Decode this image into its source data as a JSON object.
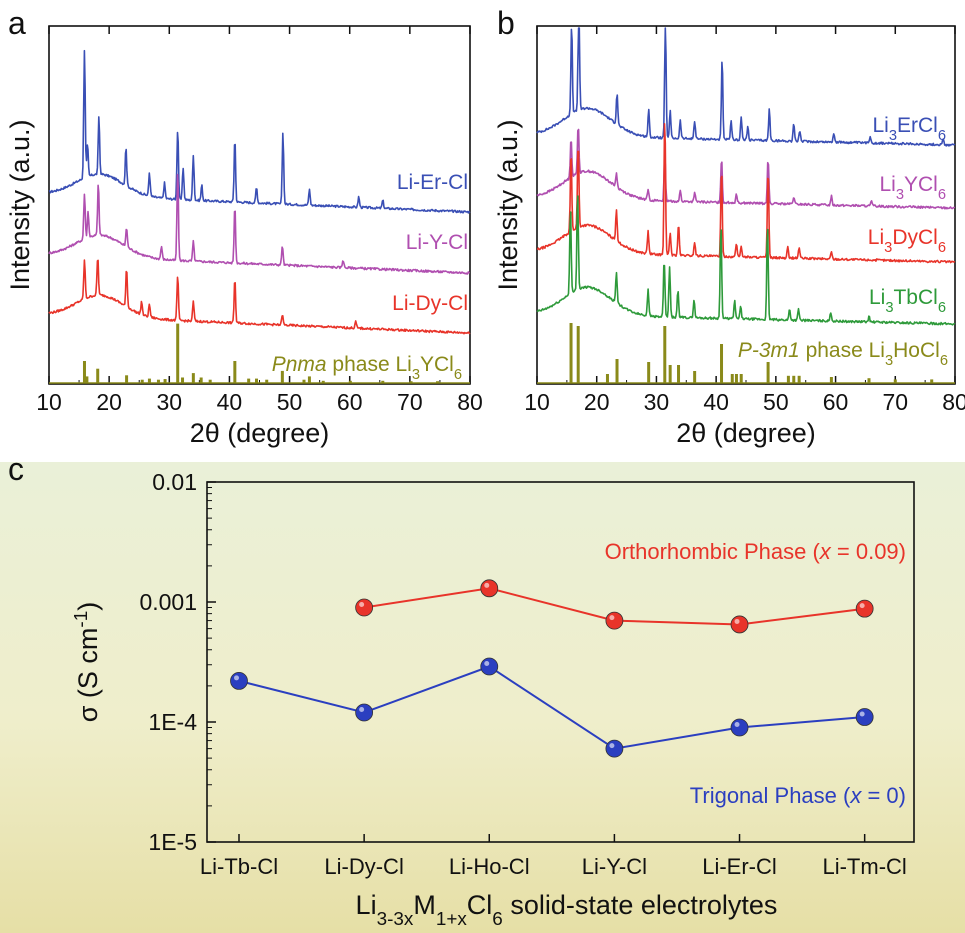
{
  "chart_data": [
    {
      "panel": "a",
      "type": "line",
      "xlabel": "2θ (degree)",
      "ylabel": "Intensity (a.u.)",
      "xlim": [
        10,
        80
      ],
      "xticks": [
        10,
        20,
        30,
        40,
        50,
        60,
        70,
        80
      ],
      "reference": {
        "label_parts": [
          {
            "t": "Pnma",
            "style": "italic"
          },
          {
            "t": " phase Li"
          },
          {
            "t": "3",
            "style": "sub"
          },
          {
            "t": "YCl"
          },
          {
            "t": "6",
            "style": "sub"
          }
        ],
        "color": "#8a8a1a",
        "peaks": [
          [
            15.9,
            1.0
          ],
          [
            16.3,
            0.3
          ],
          [
            18.1,
            0.65
          ],
          [
            22.9,
            0.35
          ],
          [
            25.5,
            0.15
          ],
          [
            26.7,
            0.2
          ],
          [
            28.2,
            0.15
          ],
          [
            29.3,
            0.18
          ],
          [
            31.4,
            2.7
          ],
          [
            32.2,
            0.25
          ],
          [
            34.0,
            0.45
          ],
          [
            35.3,
            0.25
          ],
          [
            36.8,
            0.15
          ],
          [
            40.9,
            1.0
          ],
          [
            43.2,
            0.2
          ],
          [
            44.5,
            0.2
          ],
          [
            46.2,
            0.15
          ],
          [
            48.8,
            0.55
          ],
          [
            52.4,
            0.15
          ],
          [
            53.3,
            0.3
          ],
          [
            55.6,
            0.1
          ],
          [
            60.1,
            0.1
          ],
          [
            65.5,
            0.1
          ],
          [
            70.2,
            0.08
          ],
          [
            74.6,
            0.08
          ]
        ]
      },
      "traces": [
        {
          "name": "Li-Er-Cl",
          "color": "#3a4fb5",
          "peaks": [
            [
              15.9,
              1.0
            ],
            [
              16.4,
              0.25
            ],
            [
              18.3,
              0.45
            ],
            [
              22.8,
              0.3
            ],
            [
              26.7,
              0.18
            ],
            [
              29.2,
              0.12
            ],
            [
              31.4,
              0.55
            ],
            [
              32.3,
              0.25
            ],
            [
              34.0,
              0.35
            ],
            [
              35.4,
              0.12
            ],
            [
              40.9,
              0.5
            ],
            [
              44.5,
              0.12
            ],
            [
              48.9,
              0.55
            ],
            [
              53.3,
              0.12
            ],
            [
              61.5,
              0.08
            ],
            [
              65.5,
              0.06
            ]
          ]
        },
        {
          "name": "Li-Y-Cl",
          "color": "#b04fb0",
          "peaks": [
            [
              15.9,
              0.35
            ],
            [
              16.5,
              0.2
            ],
            [
              18.2,
              0.4
            ],
            [
              22.9,
              0.15
            ],
            [
              28.7,
              0.1
            ],
            [
              31.4,
              0.7
            ],
            [
              34.0,
              0.15
            ],
            [
              40.9,
              0.45
            ],
            [
              48.8,
              0.15
            ],
            [
              58.9,
              0.06
            ]
          ]
        },
        {
          "name": "Li-Dy-Cl",
          "color": "#e8342a",
          "peaks": [
            [
              15.9,
              0.3
            ],
            [
              18.1,
              0.3
            ],
            [
              22.9,
              0.3
            ],
            [
              25.4,
              0.1
            ],
            [
              26.7,
              0.1
            ],
            [
              31.4,
              0.35
            ],
            [
              34.0,
              0.15
            ],
            [
              40.9,
              0.35
            ],
            [
              48.8,
              0.08
            ],
            [
              61.0,
              0.05
            ]
          ]
        }
      ]
    },
    {
      "panel": "b",
      "type": "line",
      "xlabel": "2θ (degree)",
      "ylabel": "Intensity (a.u.)",
      "xlim": [
        10,
        80
      ],
      "xticks": [
        10,
        20,
        30,
        40,
        50,
        60,
        70,
        80
      ],
      "reference": {
        "label_parts": [
          {
            "t": "P-3m1",
            "style": "italic"
          },
          {
            "t": " phase Li"
          },
          {
            "t": "3",
            "style": "sub"
          },
          {
            "t": "HoCl"
          },
          {
            "t": "6",
            "style": "sub"
          }
        ],
        "color": "#8a8a1a",
        "peaks": [
          [
            15.7,
            1.0
          ],
          [
            16.9,
            0.95
          ],
          [
            21.8,
            0.15
          ],
          [
            23.4,
            0.4
          ],
          [
            28.7,
            0.35
          ],
          [
            31.4,
            0.95
          ],
          [
            32.3,
            0.3
          ],
          [
            33.7,
            0.3
          ],
          [
            36.4,
            0.2
          ],
          [
            40.9,
            0.65
          ],
          [
            42.7,
            0.15
          ],
          [
            43.4,
            0.15
          ],
          [
            44.2,
            0.15
          ],
          [
            48.7,
            0.35
          ],
          [
            52.1,
            0.12
          ],
          [
            53.0,
            0.12
          ],
          [
            53.9,
            0.12
          ],
          [
            59.3,
            0.1
          ],
          [
            65.6,
            0.08
          ],
          [
            70.0,
            0.06
          ],
          [
            76.1,
            0.06
          ]
        ]
      },
      "traces": [
        {
          "name_parts": [
            {
              "t": "Li"
            },
            {
              "t": "3",
              "style": "sub"
            },
            {
              "t": "ErCl"
            },
            {
              "t": "6",
              "style": "sub"
            }
          ],
          "color": "#3a4fb5",
          "peaks": [
            [
              15.8,
              1.0
            ],
            [
              17.0,
              1.25
            ],
            [
              23.4,
              0.35
            ],
            [
              28.7,
              0.3
            ],
            [
              31.5,
              1.3
            ],
            [
              32.3,
              0.3
            ],
            [
              34.0,
              0.2
            ],
            [
              36.4,
              0.2
            ],
            [
              41.0,
              0.9
            ],
            [
              42.5,
              0.2
            ],
            [
              44.2,
              0.25
            ],
            [
              45.3,
              0.15
            ],
            [
              48.9,
              0.35
            ],
            [
              53.0,
              0.2
            ],
            [
              54.0,
              0.12
            ],
            [
              59.7,
              0.1
            ],
            [
              65.8,
              0.08
            ],
            [
              78.0,
              0.06
            ]
          ]
        },
        {
          "name_parts": [
            {
              "t": "Li"
            },
            {
              "t": "3",
              "style": "sub"
            },
            {
              "t": "YCl"
            },
            {
              "t": "6",
              "style": "sub"
            }
          ],
          "color": "#b04fb0",
          "peaks": [
            [
              15.7,
              0.45
            ],
            [
              16.9,
              0.55
            ],
            [
              23.3,
              0.15
            ],
            [
              28.6,
              0.12
            ],
            [
              31.4,
              0.5
            ],
            [
              34.0,
              0.12
            ],
            [
              36.4,
              0.1
            ],
            [
              40.9,
              0.5
            ],
            [
              43.4,
              0.1
            ],
            [
              48.7,
              0.5
            ],
            [
              53.0,
              0.08
            ],
            [
              59.3,
              0.1
            ],
            [
              66.0,
              0.05
            ]
          ]
        },
        {
          "name_parts": [
            {
              "t": "Li"
            },
            {
              "t": "3",
              "style": "sub"
            },
            {
              "t": "DyCl"
            },
            {
              "t": "6",
              "style": "sub"
            }
          ],
          "color": "#e8342a",
          "peaks": [
            [
              15.7,
              0.9
            ],
            [
              16.9,
              0.95
            ],
            [
              23.3,
              0.35
            ],
            [
              28.6,
              0.25
            ],
            [
              31.4,
              1.55
            ],
            [
              32.3,
              0.25
            ],
            [
              33.7,
              0.35
            ],
            [
              36.4,
              0.15
            ],
            [
              40.9,
              1.0
            ],
            [
              43.4,
              0.15
            ],
            [
              44.2,
              0.12
            ],
            [
              48.7,
              1.0
            ],
            [
              52.0,
              0.12
            ],
            [
              53.9,
              0.12
            ],
            [
              59.3,
              0.08
            ]
          ]
        },
        {
          "name_parts": [
            {
              "t": "Li"
            },
            {
              "t": "3",
              "style": "sub"
            },
            {
              "t": "TbCl"
            },
            {
              "t": "6",
              "style": "sub"
            }
          ],
          "color": "#2e9a3a",
          "peaks": [
            [
              15.6,
              0.95
            ],
            [
              16.8,
              1.1
            ],
            [
              23.3,
              0.35
            ],
            [
              28.6,
              0.3
            ],
            [
              31.3,
              0.65
            ],
            [
              32.2,
              0.55
            ],
            [
              33.6,
              0.3
            ],
            [
              36.3,
              0.2
            ],
            [
              40.8,
              1.05
            ],
            [
              43.1,
              0.2
            ],
            [
              44.1,
              0.15
            ],
            [
              48.6,
              1.05
            ],
            [
              52.3,
              0.12
            ],
            [
              53.8,
              0.12
            ],
            [
              59.2,
              0.1
            ],
            [
              65.6,
              0.06
            ]
          ]
        }
      ]
    },
    {
      "panel": "c",
      "type": "line",
      "categories": [
        "Li-Tb-Cl",
        "Li-Dy-Cl",
        "Li-Ho-Cl",
        "Li-Y-Cl",
        "Li-Er-Cl",
        "Li-Tm-Cl"
      ],
      "ylabel_parts": [
        {
          "t": "σ (S cm"
        },
        {
          "t": "-1",
          "style": "sup"
        },
        {
          "t": ")"
        }
      ],
      "xlabel_parts": [
        {
          "t": "Li"
        },
        {
          "t": "3-3x",
          "style": "sub"
        },
        {
          "t": "M"
        },
        {
          "t": "1+x",
          "style": "sub"
        },
        {
          "t": "Cl"
        },
        {
          "t": "6",
          "style": "sub"
        },
        {
          "t": " solid-state electrolytes"
        }
      ],
      "yscale": "log",
      "ylim": [
        1e-05,
        0.01
      ],
      "yticks": [
        1e-05,
        0.0001,
        0.001,
        0.01
      ],
      "ytick_labels": [
        "1E-5",
        "1E-4",
        "0.001",
        "0.01"
      ],
      "series": [
        {
          "name_parts": [
            {
              "t": "Orthorhombic Phase ("
            },
            {
              "t": "x",
              "style": "italic"
            },
            {
              "t": " = 0.09)"
            }
          ],
          "color": "#e8342a",
          "values": [
            null,
            0.0009,
            0.0013,
            0.0007,
            0.00065,
            0.00088
          ]
        },
        {
          "name_parts": [
            {
              "t": "Trigonal Phase ("
            },
            {
              "t": "x",
              "style": "italic"
            },
            {
              "t": " = 0)"
            }
          ],
          "color": "#2b3fc0",
          "values": [
            0.00022,
            0.00012,
            0.00029,
            6e-05,
            9e-05,
            0.00011
          ]
        }
      ]
    }
  ],
  "panel_letters": [
    "a",
    "b",
    "c"
  ]
}
